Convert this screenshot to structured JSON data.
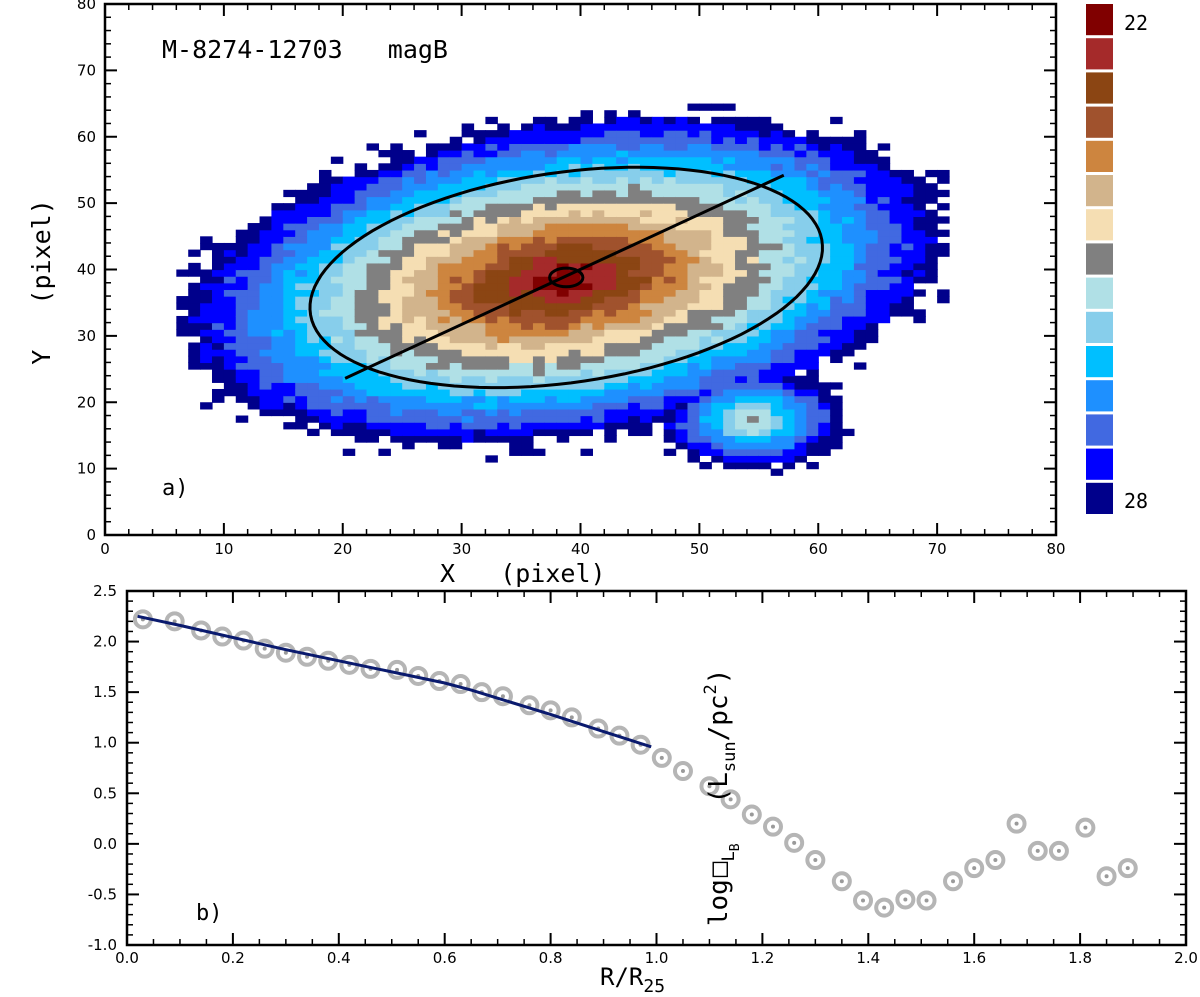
{
  "chart_data": [
    {
      "type": "heatmap",
      "panel_label": "a)",
      "title": "M-8274-12703   magB",
      "xlabel": "X   (pixel)",
      "ylabel": "Y   (pixel)",
      "xlim": [
        0,
        80
      ],
      "ylim": [
        0,
        80
      ],
      "xticks": [
        0,
        10,
        20,
        30,
        40,
        50,
        60,
        70,
        80
      ],
      "yticks": [
        0,
        10,
        20,
        30,
        40,
        50,
        60,
        70,
        80
      ],
      "galaxy_center": [
        38.5,
        38.5
      ],
      "field_extent": {
        "x": [
          6,
          71
        ],
        "y": [
          7.5,
          65
        ]
      },
      "companion": {
        "center": [
          54.5,
          17.5
        ],
        "radius": 7
      },
      "isophote_levels": 15,
      "colorbar": {
        "min_label": "28",
        "max_label": "22",
        "colors": [
          "#00008b",
          "#0000ff",
          "#4169e1",
          "#1e90ff",
          "#00bfff",
          "#87ceeb",
          "#b0e0e6",
          "#808080",
          "#f5deb3",
          "#d2b48c",
          "#cd853f",
          "#a0522d",
          "#8b4513",
          "#a52a2a",
          "#800000"
        ]
      },
      "overlays": {
        "ellipse": {
          "center": [
            38.8,
            38.8
          ],
          "semi_major": 22.5,
          "semi_minor": 15.3,
          "angle_deg": 23
        },
        "major_axis": {
          "x": [
            20.2,
            57.1
          ],
          "y": [
            23.6,
            54.2
          ]
        },
        "center_circle": {
          "center": [
            38.8,
            38.8
          ],
          "radius": 1.4
        }
      }
    },
    {
      "type": "scatter",
      "panel_label": "b)",
      "xlabel_main": "R/R",
      "xlabel_sub": "25",
      "ylabel_main": "log",
      "ylabel_sub": "L",
      "ylabel_sub2": "B",
      "ylabel_units_main": "(L",
      "ylabel_units_sub": "sun",
      "ylabel_units_tail": "/pc",
      "ylabel_units_sup": "2",
      "ylabel_units_close": ")",
      "xlim": [
        0.0,
        2.0
      ],
      "ylim": [
        -1.0,
        2.5
      ],
      "xticks": [
        "0.0",
        "0.2",
        "0.4",
        "0.6",
        "0.8",
        "1.0",
        "1.2",
        "1.4",
        "1.6",
        "1.8",
        "2.0"
      ],
      "yticks": [
        "-1.0",
        "-0.5",
        "0.0",
        "0.5",
        "1.0",
        "1.5",
        "2.0",
        "2.5"
      ],
      "points": {
        "x": [
          0.03,
          0.09,
          0.14,
          0.18,
          0.22,
          0.26,
          0.3,
          0.34,
          0.38,
          0.42,
          0.46,
          0.51,
          0.55,
          0.59,
          0.63,
          0.67,
          0.71,
          0.76,
          0.8,
          0.84,
          0.89,
          0.93,
          0.97,
          1.01,
          1.05,
          1.1,
          1.14,
          1.18,
          1.22,
          1.26,
          1.3,
          1.35,
          1.39,
          1.43,
          1.47,
          1.51,
          1.56,
          1.6,
          1.64,
          1.68,
          1.72,
          1.76,
          1.81,
          1.85,
          1.89
        ],
        "y": [
          2.22,
          2.2,
          2.11,
          2.05,
          2.01,
          1.93,
          1.89,
          1.85,
          1.81,
          1.77,
          1.73,
          1.72,
          1.66,
          1.61,
          1.58,
          1.5,
          1.46,
          1.37,
          1.32,
          1.25,
          1.14,
          1.07,
          0.98,
          0.85,
          0.72,
          0.57,
          0.44,
          0.29,
          0.17,
          0.01,
          -0.16,
          -0.37,
          -0.56,
          -0.63,
          -0.55,
          -0.56,
          -0.37,
          -0.24,
          -0.16,
          0.2,
          -0.07,
          -0.07,
          0.16,
          -0.32,
          -0.24
        ]
      },
      "fit_line": {
        "x": [
          0.02,
          0.1,
          0.2,
          0.3,
          0.4,
          0.5,
          0.6,
          0.65,
          0.7,
          0.8,
          0.9,
          0.99
        ],
        "y": [
          2.25,
          2.16,
          2.04,
          1.92,
          1.81,
          1.7,
          1.59,
          1.52,
          1.44,
          1.28,
          1.11,
          0.96
        ]
      }
    }
  ]
}
